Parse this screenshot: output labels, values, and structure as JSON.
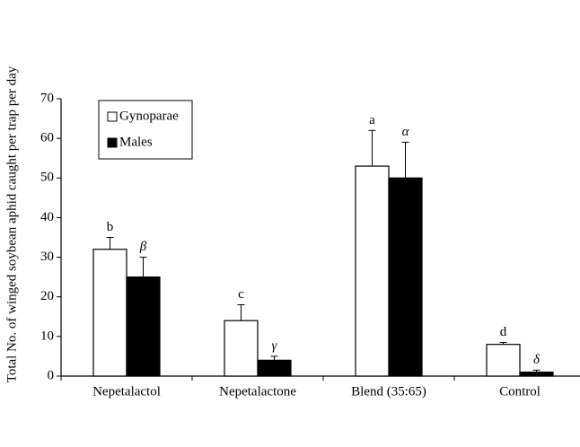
{
  "chart_data": {
    "type": "bar",
    "y_label": "Total No. of winged soybean aphid caught per trap per day",
    "categories": [
      "Nepetalactol",
      "Nepetalactone",
      "Blend (35:65)",
      "Control"
    ],
    "series": [
      {
        "name": "Gynoparae",
        "color": "#ffffff",
        "values": [
          32,
          14,
          53,
          8
        ],
        "errors": [
          3,
          4,
          9,
          0.5
        ],
        "letters": [
          "b",
          "c",
          "a",
          "d"
        ]
      },
      {
        "name": "Males",
        "color": "#000000",
        "values": [
          25,
          4,
          50,
          1
        ],
        "errors": [
          5,
          1,
          9,
          0.5
        ],
        "letters": [
          "β",
          "γ",
          "α",
          "δ"
        ]
      }
    ],
    "ylim": [
      0,
      70
    ],
    "yticks": [
      0,
      10,
      20,
      30,
      40,
      50,
      60,
      70
    ],
    "grid": false,
    "legend": "upper left"
  }
}
